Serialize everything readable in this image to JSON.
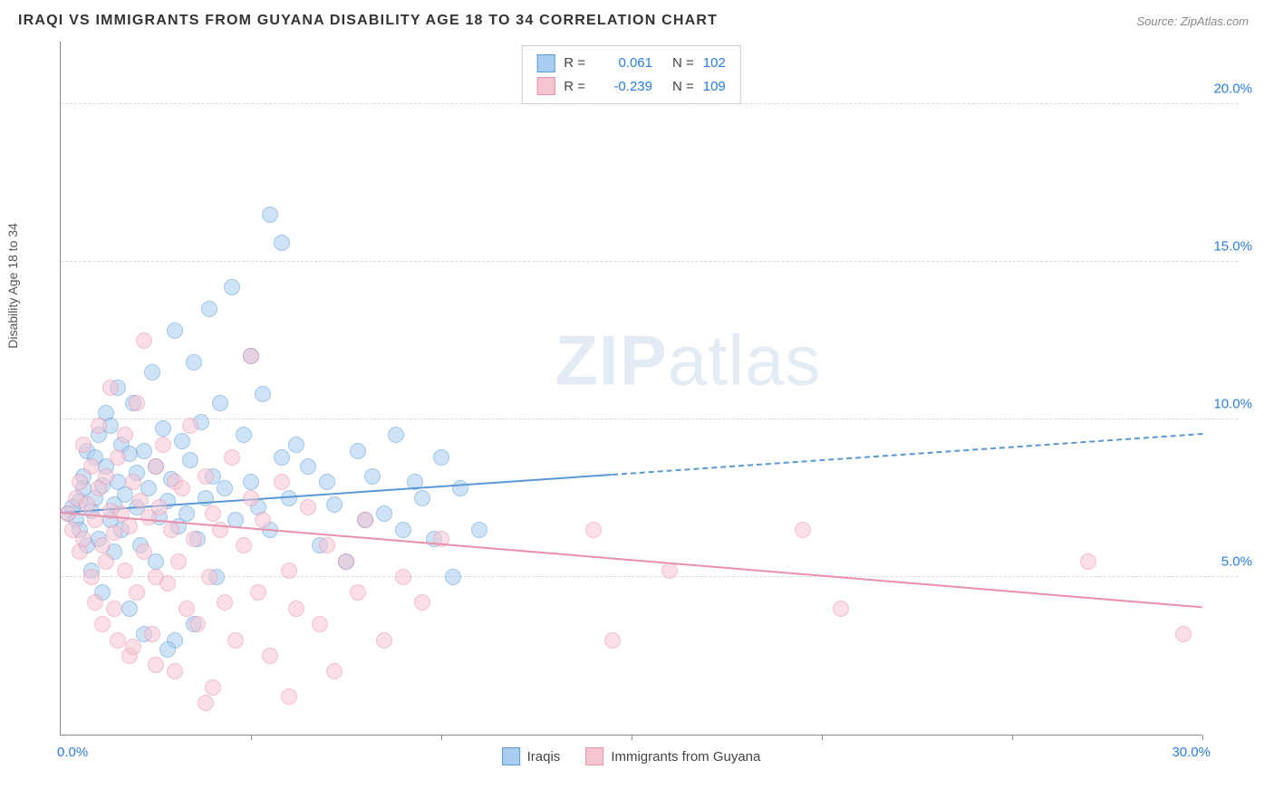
{
  "title": "IRAQI VS IMMIGRANTS FROM GUYANA DISABILITY AGE 18 TO 34 CORRELATION CHART",
  "source": "Source: ZipAtlas.com",
  "watermark": {
    "bold": "ZIP",
    "light": "atlas"
  },
  "ylabel": "Disability Age 18 to 34",
  "chart": {
    "type": "scatter",
    "background_color": "#ffffff",
    "grid_color": "#d8d8d8",
    "xlim": [
      0,
      30
    ],
    "ylim": [
      0,
      22
    ],
    "xtick_step": 5,
    "y_gridlines": [
      5,
      10,
      15,
      20
    ],
    "y_right_labels": [
      "5.0%",
      "10.0%",
      "15.0%",
      "20.0%"
    ],
    "x_origin_label": "0.0%",
    "x_max_label": "30.0%",
    "axis_label_color": "#2b7de9",
    "axis_label_fontsize": 15,
    "marker_radius": 9,
    "marker_opacity": 0.55,
    "series": [
      {
        "name": "Iraqis",
        "color_fill": "#a9cdf0",
        "color_stroke": "#5a99d6",
        "r_value": "0.061",
        "n_value": "102",
        "regression": {
          "x0": 0,
          "y0": 7.0,
          "x1": 30,
          "y1": 9.5,
          "solid_until_x": 14.5
        },
        "points": [
          [
            0.2,
            7.0
          ],
          [
            0.3,
            7.2
          ],
          [
            0.4,
            6.8
          ],
          [
            0.5,
            7.4
          ],
          [
            0.5,
            6.5
          ],
          [
            0.6,
            7.8
          ],
          [
            0.6,
            8.2
          ],
          [
            0.7,
            6.0
          ],
          [
            0.7,
            9.0
          ],
          [
            0.8,
            7.1
          ],
          [
            0.8,
            5.2
          ],
          [
            0.9,
            8.8
          ],
          [
            0.9,
            7.5
          ],
          [
            1.0,
            6.2
          ],
          [
            1.0,
            9.5
          ],
          [
            1.1,
            7.9
          ],
          [
            1.1,
            4.5
          ],
          [
            1.2,
            8.5
          ],
          [
            1.2,
            10.2
          ],
          [
            1.3,
            6.8
          ],
          [
            1.3,
            9.8
          ],
          [
            1.4,
            7.3
          ],
          [
            1.4,
            5.8
          ],
          [
            1.5,
            8.0
          ],
          [
            1.5,
            11.0
          ],
          [
            1.6,
            6.5
          ],
          [
            1.6,
            9.2
          ],
          [
            1.7,
            7.6
          ],
          [
            1.8,
            8.9
          ],
          [
            1.8,
            4.0
          ],
          [
            1.9,
            10.5
          ],
          [
            2.0,
            7.2
          ],
          [
            2.0,
            8.3
          ],
          [
            2.1,
            6.0
          ],
          [
            2.2,
            9.0
          ],
          [
            2.2,
            3.2
          ],
          [
            2.3,
            7.8
          ],
          [
            2.4,
            11.5
          ],
          [
            2.5,
            8.5
          ],
          [
            2.5,
            5.5
          ],
          [
            2.6,
            6.9
          ],
          [
            2.7,
            9.7
          ],
          [
            2.8,
            7.4
          ],
          [
            2.9,
            8.1
          ],
          [
            3.0,
            3.0
          ],
          [
            3.0,
            12.8
          ],
          [
            3.1,
            6.6
          ],
          [
            3.2,
            9.3
          ],
          [
            3.3,
            7.0
          ],
          [
            3.4,
            8.7
          ],
          [
            3.5,
            11.8
          ],
          [
            3.6,
            6.2
          ],
          [
            3.7,
            9.9
          ],
          [
            3.8,
            7.5
          ],
          [
            3.9,
            13.5
          ],
          [
            4.0,
            8.2
          ],
          [
            4.1,
            5.0
          ],
          [
            4.2,
            10.5
          ],
          [
            4.3,
            7.8
          ],
          [
            4.5,
            14.2
          ],
          [
            4.6,
            6.8
          ],
          [
            4.8,
            9.5
          ],
          [
            5.0,
            8.0
          ],
          [
            5.0,
            12.0
          ],
          [
            5.2,
            7.2
          ],
          [
            5.3,
            10.8
          ],
          [
            5.5,
            6.5
          ],
          [
            5.5,
            16.5
          ],
          [
            5.8,
            8.8
          ],
          [
            5.8,
            15.6
          ],
          [
            6.0,
            7.5
          ],
          [
            6.2,
            9.2
          ],
          [
            6.5,
            8.5
          ],
          [
            6.8,
            6.0
          ],
          [
            7.0,
            8.0
          ],
          [
            7.2,
            7.3
          ],
          [
            7.5,
            5.5
          ],
          [
            7.8,
            9.0
          ],
          [
            8.0,
            6.8
          ],
          [
            8.2,
            8.2
          ],
          [
            8.5,
            7.0
          ],
          [
            8.8,
            9.5
          ],
          [
            9.0,
            6.5
          ],
          [
            9.3,
            8.0
          ],
          [
            9.5,
            7.5
          ],
          [
            9.8,
            6.2
          ],
          [
            10.0,
            8.8
          ],
          [
            10.3,
            5.0
          ],
          [
            10.5,
            7.8
          ],
          [
            11.0,
            6.5
          ],
          [
            2.8,
            2.7
          ],
          [
            3.5,
            3.5
          ]
        ]
      },
      {
        "name": "Immigrants from Guyana",
        "color_fill": "#f6c5d2",
        "color_stroke": "#e890ac",
        "r_value": "-0.239",
        "n_value": "109",
        "regression": {
          "x0": 0,
          "y0": 7.0,
          "x1": 30,
          "y1": 4.0,
          "solid_until_x": 30
        },
        "points": [
          [
            0.2,
            7.0
          ],
          [
            0.3,
            6.5
          ],
          [
            0.4,
            7.5
          ],
          [
            0.5,
            5.8
          ],
          [
            0.5,
            8.0
          ],
          [
            0.6,
            6.2
          ],
          [
            0.6,
            9.2
          ],
          [
            0.7,
            7.3
          ],
          [
            0.8,
            5.0
          ],
          [
            0.8,
            8.5
          ],
          [
            0.9,
            6.8
          ],
          [
            0.9,
            4.2
          ],
          [
            1.0,
            7.8
          ],
          [
            1.0,
            9.8
          ],
          [
            1.1,
            6.0
          ],
          [
            1.1,
            3.5
          ],
          [
            1.2,
            8.2
          ],
          [
            1.2,
            5.5
          ],
          [
            1.3,
            7.1
          ],
          [
            1.3,
            11.0
          ],
          [
            1.4,
            6.4
          ],
          [
            1.4,
            4.0
          ],
          [
            1.5,
            8.8
          ],
          [
            1.5,
            3.0
          ],
          [
            1.6,
            7.0
          ],
          [
            1.7,
            5.2
          ],
          [
            1.7,
            9.5
          ],
          [
            1.8,
            6.6
          ],
          [
            1.8,
            2.5
          ],
          [
            1.9,
            8.0
          ],
          [
            2.0,
            4.5
          ],
          [
            2.0,
            10.5
          ],
          [
            2.1,
            7.4
          ],
          [
            2.2,
            5.8
          ],
          [
            2.2,
            12.5
          ],
          [
            2.3,
            6.9
          ],
          [
            2.4,
            3.2
          ],
          [
            2.5,
            8.5
          ],
          [
            2.5,
            5.0
          ],
          [
            2.6,
            7.2
          ],
          [
            2.7,
            9.2
          ],
          [
            2.8,
            4.8
          ],
          [
            2.9,
            6.5
          ],
          [
            3.0,
            8.0
          ],
          [
            3.0,
            2.0
          ],
          [
            3.1,
            5.5
          ],
          [
            3.2,
            7.8
          ],
          [
            3.3,
            4.0
          ],
          [
            3.4,
            9.8
          ],
          [
            3.5,
            6.2
          ],
          [
            3.6,
            3.5
          ],
          [
            3.8,
            8.2
          ],
          [
            3.9,
            5.0
          ],
          [
            4.0,
            7.0
          ],
          [
            4.0,
            1.5
          ],
          [
            4.2,
            6.5
          ],
          [
            4.3,
            4.2
          ],
          [
            4.5,
            8.8
          ],
          [
            4.6,
            3.0
          ],
          [
            4.8,
            6.0
          ],
          [
            5.0,
            7.5
          ],
          [
            5.0,
            12.0
          ],
          [
            5.2,
            4.5
          ],
          [
            5.3,
            6.8
          ],
          [
            5.5,
            2.5
          ],
          [
            5.8,
            8.0
          ],
          [
            6.0,
            5.2
          ],
          [
            6.2,
            4.0
          ],
          [
            6.5,
            7.2
          ],
          [
            6.8,
            3.5
          ],
          [
            7.0,
            6.0
          ],
          [
            7.2,
            2.0
          ],
          [
            7.5,
            5.5
          ],
          [
            7.8,
            4.5
          ],
          [
            8.0,
            6.8
          ],
          [
            8.5,
            3.0
          ],
          [
            9.0,
            5.0
          ],
          [
            9.5,
            4.2
          ],
          [
            10.0,
            6.2
          ],
          [
            6.0,
            1.2
          ],
          [
            14.0,
            6.5
          ],
          [
            14.5,
            3.0
          ],
          [
            16.0,
            5.2
          ],
          [
            19.5,
            6.5
          ],
          [
            20.5,
            4.0
          ],
          [
            27.0,
            5.5
          ],
          [
            29.5,
            3.2
          ],
          [
            3.8,
            1.0
          ],
          [
            2.5,
            2.2
          ],
          [
            1.9,
            2.8
          ]
        ]
      }
    ]
  },
  "stats_labels": {
    "r": "R =",
    "n": "N ="
  },
  "legend": [
    {
      "label": "Iraqis",
      "series": 0
    },
    {
      "label": "Immigrants from Guyana",
      "series": 1
    }
  ]
}
